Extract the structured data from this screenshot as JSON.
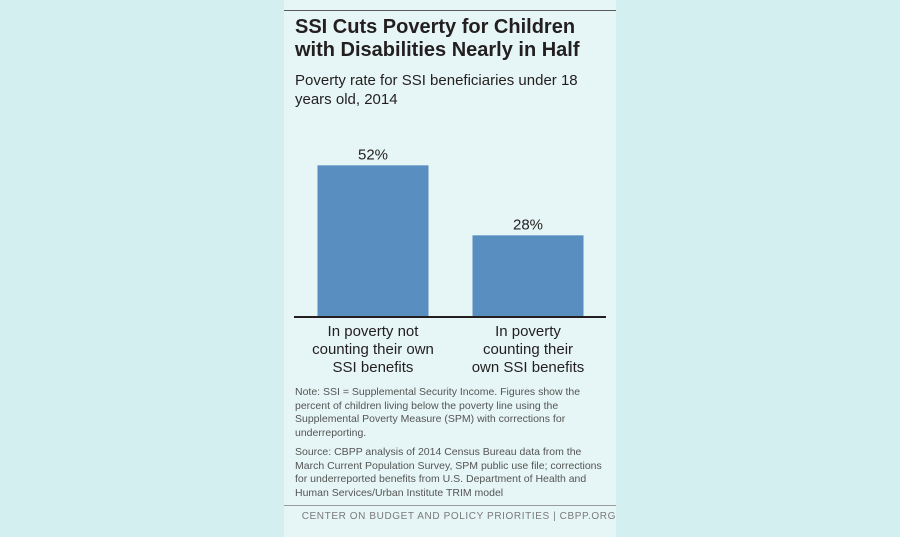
{
  "title": "SSI Cuts Poverty for Children with Disabilities Nearly in Half",
  "subtitle": "Poverty rate for SSI beneficiaries under 18 years old, 2014",
  "note": "Note: SSI = Supplemental Security Income. Figures show the percent of children living below the poverty line using the Supplemental Poverty Measure (SPM) with corrections for underreporting.",
  "source": "Source: CBPP analysis of 2014 Census Bureau data from the March Current Population Survey, SPM public use file; corrections for underreported benefits from U.S. Department of Health and Human Services/Urban Institute TRIM model",
  "footer": "CENTER ON BUDGET AND POLICY PRIORITIES | CBPP.ORG",
  "colors": {
    "bar": "#588fc0",
    "background": "#d3eff0",
    "card": "#e6f5f5"
  },
  "chart_data": {
    "type": "bar",
    "categories": [
      [
        "In poverty not",
        "counting their own",
        "SSI benefits"
      ],
      [
        "In poverty",
        "counting their",
        "own SSI benefits"
      ]
    ],
    "values": [
      52,
      28
    ],
    "value_labels": [
      "52%",
      "28%"
    ],
    "ylim": [
      0,
      60
    ],
    "grid": false,
    "legend": "none"
  }
}
